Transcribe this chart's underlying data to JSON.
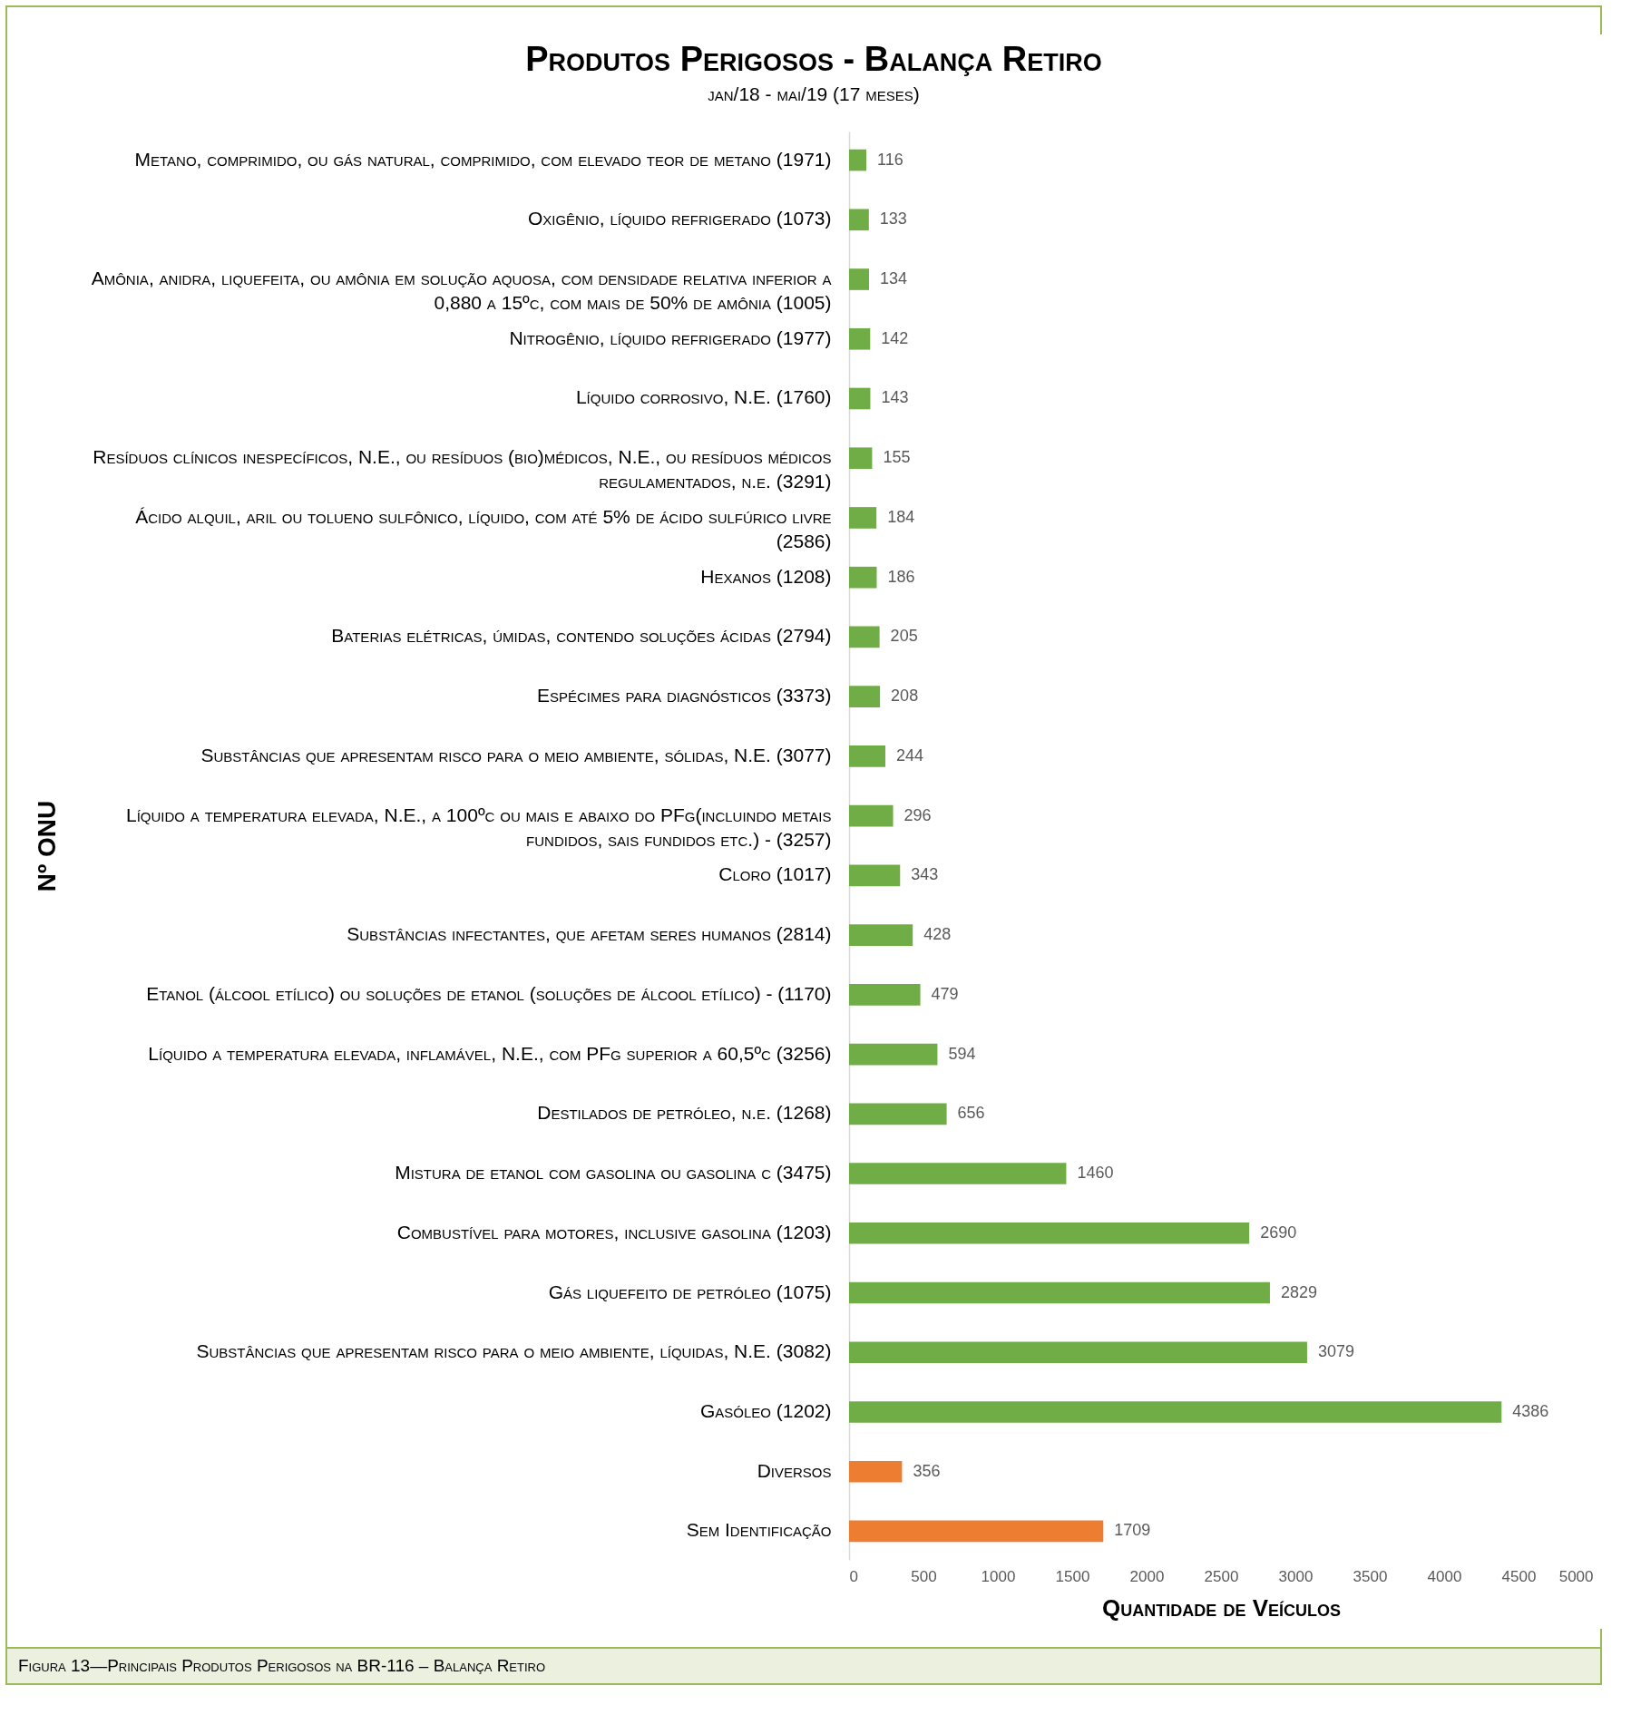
{
  "chart_data": {
    "type": "bar",
    "orientation": "horizontal",
    "title": "Produtos Perigosos - Balança Retiro",
    "subtitle": "jan/18 - mai/19 (17 meses)",
    "xlabel": "Quantidade de Veículos",
    "ylabel": "Nº ONU",
    "categories": [
      "Metano, comprimido, ou gás natural, comprimido, com elevado teor de metano (1971)",
      "Oxigênio, líquido refrigerado (1073)",
      "Amônia, anidra, liquefeita, ou amônia em solução aquosa, com densidade relativa inferior a 0,880 a 15ºc, com mais de 50% de amônia (1005)",
      "Nitrogênio, líquido refrigerado (1977)",
      "Líquido corrosivo, N.E. (1760)",
      "Resíduos clínicos inespecíficos, N.E., ou resíduos (bio)médicos, N.E., ou resíduos médicos regulamentados, n.e. (3291)",
      "Ácido alquil, aril ou tolueno sulfônico, líquido, com até 5% de ácido sulfúrico livre (2586)",
      "Hexanos (1208)",
      "Baterias elétricas, úmidas, contendo soluções ácidas (2794)",
      "Espécimes para diagnósticos (3373)",
      "Substâncias que apresentam risco para o meio ambiente, sólidas, N.E. (3077)",
      "Líquido a temperatura elevada, N.E., a 100ºc ou mais e abaixo do PFg(incluindo metais fundidos, sais fundidos etc.) - (3257)",
      "Cloro (1017)",
      "Substâncias infectantes, que afetam seres humanos (2814)",
      "Etanol (álcool etílico) ou soluções de etanol (soluções de álcool etílico) - (1170)",
      "Líquido a temperatura elevada, inflamável, N.E., com PFg superior a 60,5ºc (3256)",
      "Destilados de petróleo, n.e. (1268)",
      "Mistura de etanol com gasolina ou gasolina c (3475)",
      "Combustível para motores, inclusive gasolina (1203)",
      "Gás liquefeito de petróleo (1075)",
      "Substâncias que apresentam risco para o meio ambiente, líquidas, N.E. (3082)",
      "Gasóleo (1202)",
      "Diversos",
      "Sem Identificação"
    ],
    "values": [
      116,
      133,
      134,
      142,
      143,
      155,
      184,
      186,
      205,
      208,
      244,
      296,
      343,
      428,
      479,
      594,
      656,
      1460,
      2690,
      2829,
      3079,
      4386,
      356,
      1709
    ],
    "colors": [
      "#70ad47",
      "#70ad47",
      "#70ad47",
      "#70ad47",
      "#70ad47",
      "#70ad47",
      "#70ad47",
      "#70ad47",
      "#70ad47",
      "#70ad47",
      "#70ad47",
      "#70ad47",
      "#70ad47",
      "#70ad47",
      "#70ad47",
      "#70ad47",
      "#70ad47",
      "#70ad47",
      "#70ad47",
      "#70ad47",
      "#70ad47",
      "#70ad47",
      "#ed7d31",
      "#ed7d31"
    ],
    "xlim": [
      0,
      5000
    ],
    "xticks": [
      0,
      500,
      1000,
      1500,
      2000,
      2500,
      3000,
      3500,
      4000,
      4500,
      5000
    ],
    "data_labels": true,
    "annotations": [
      "Figura 13—Principais Produtos Perigosos na BR-116 – Balança Retiro"
    ]
  }
}
